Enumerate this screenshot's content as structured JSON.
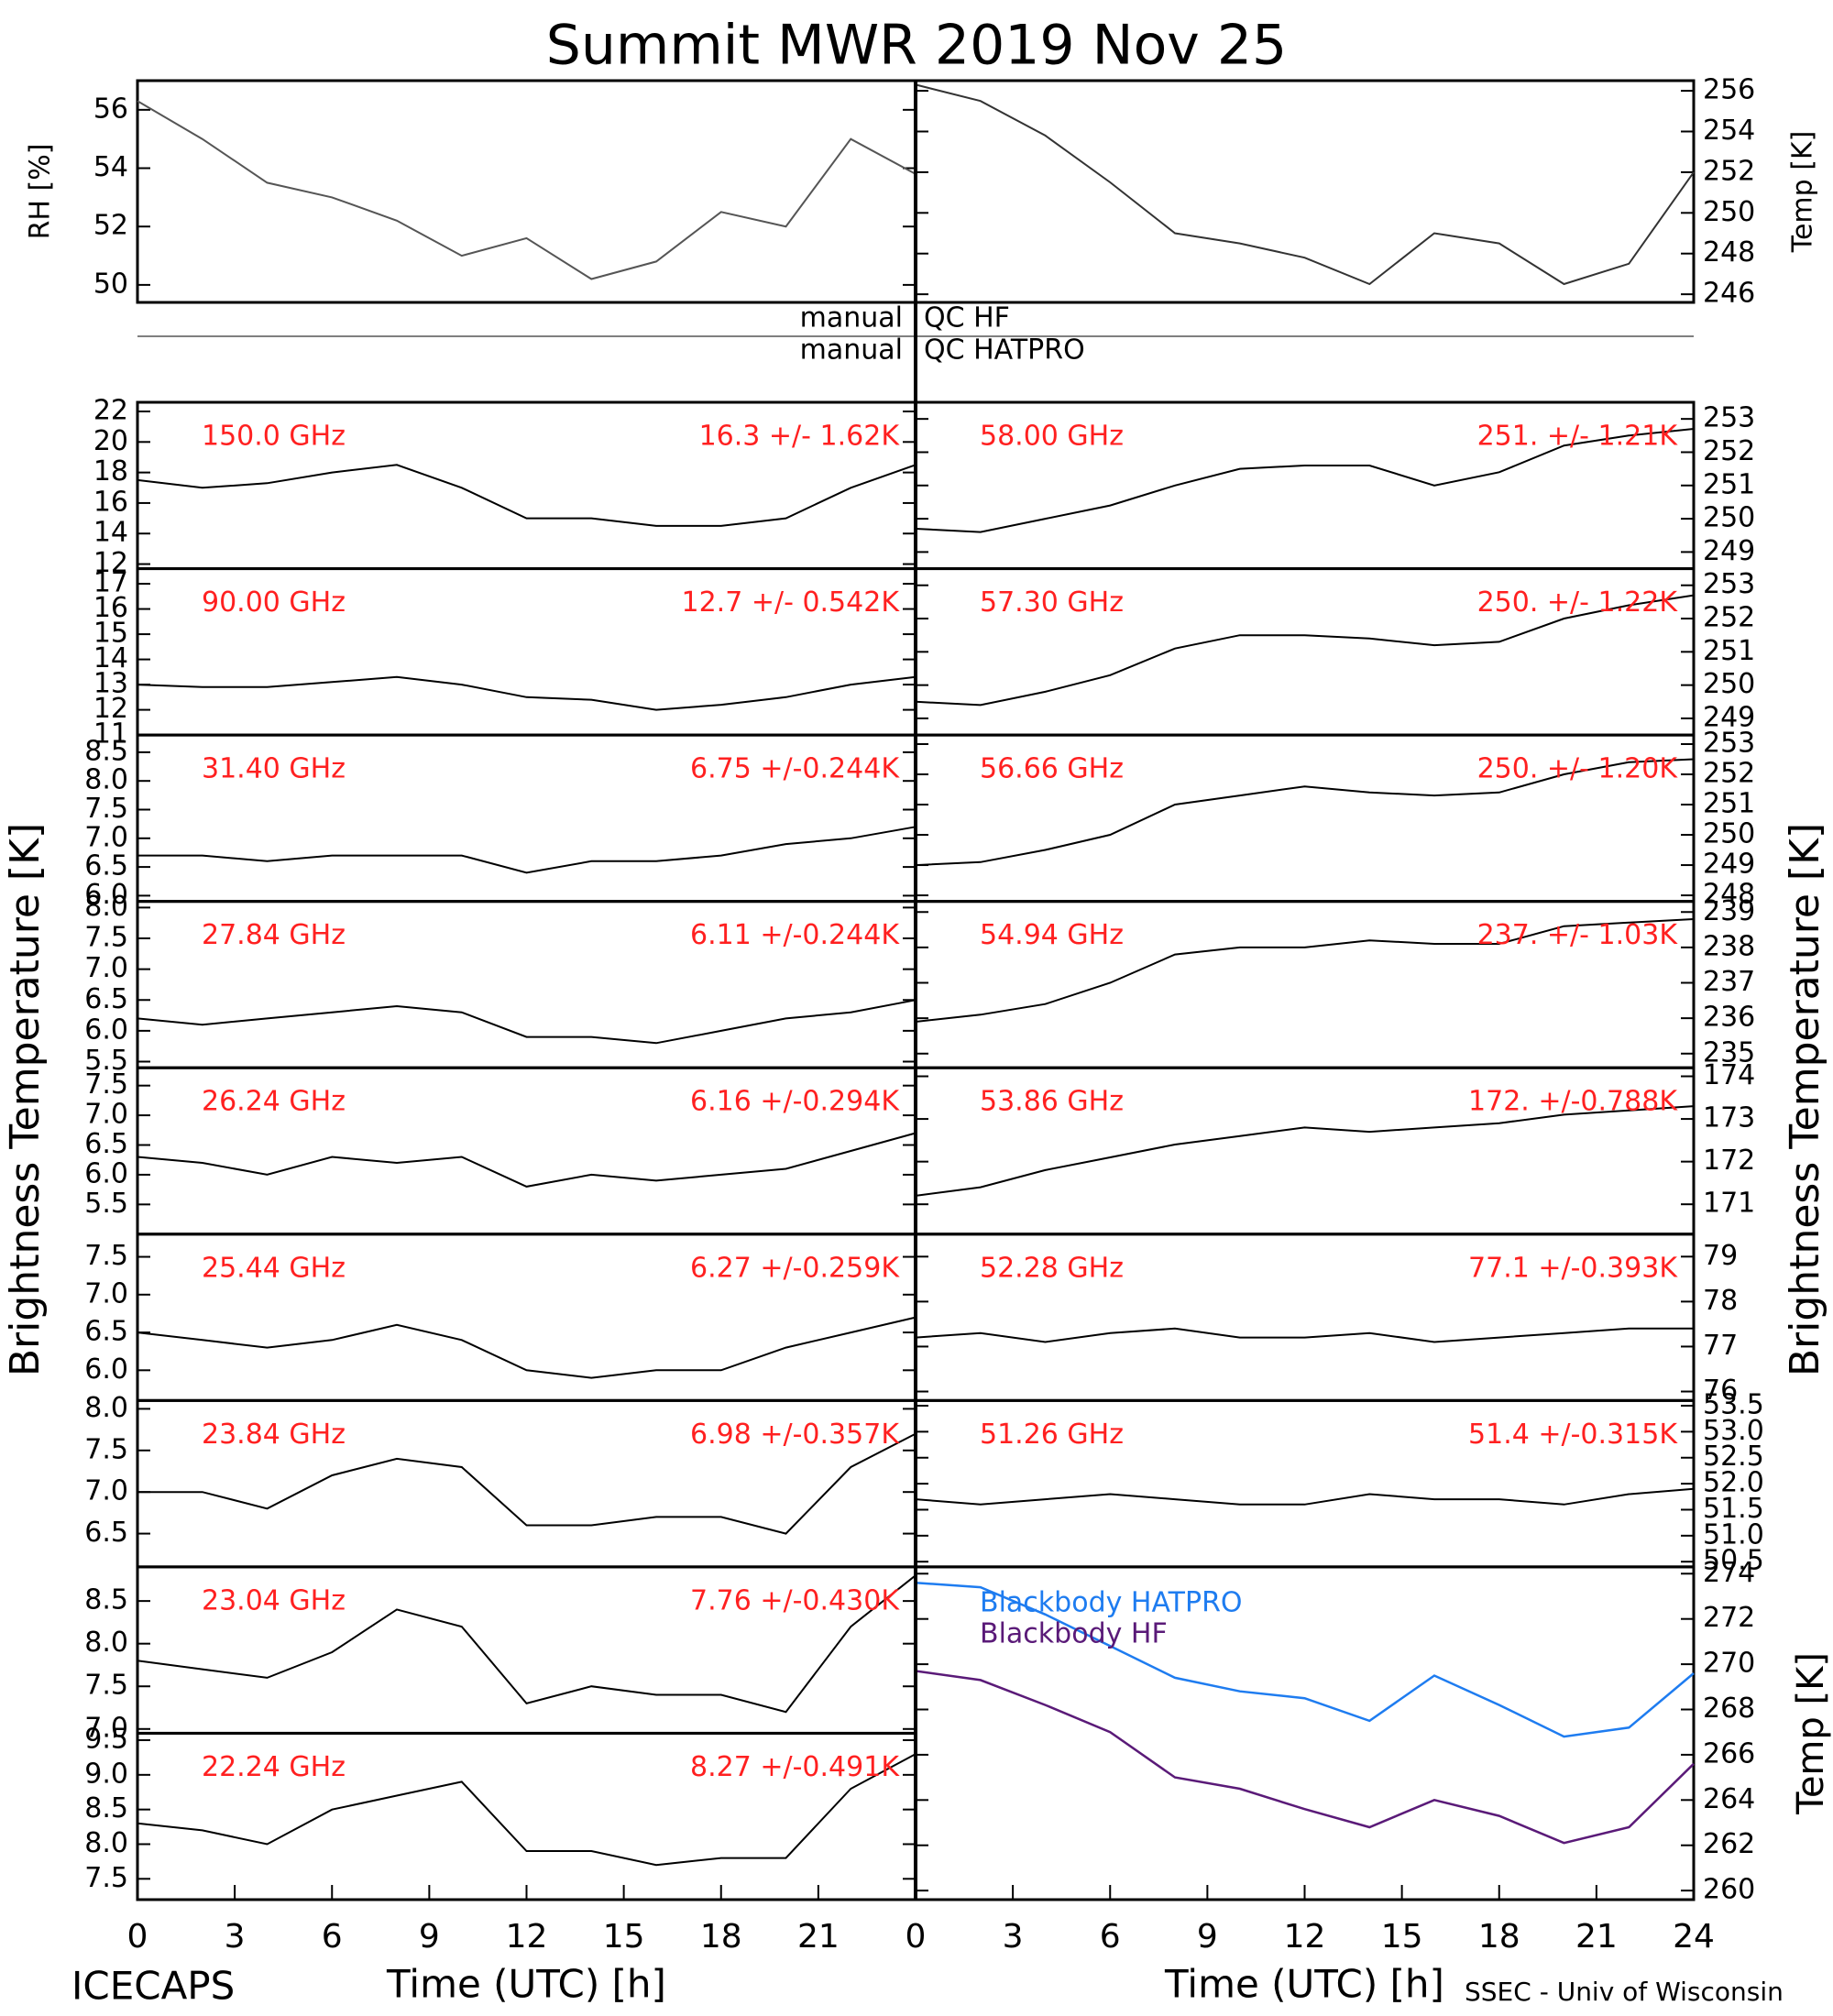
{
  "title": "Summit MWR 2019 Nov 25",
  "ylabel": "Brightness Temperature [K]",
  "qc": [
    {
      "left": "manual",
      "right": "QC HF"
    },
    {
      "left": "manual",
      "right": "QC HATPRO"
    }
  ],
  "footer": {
    "left": "ICECAPS",
    "right": "SSEC - Univ of Wisconsin"
  },
  "chart_data": [
    {
      "type": "line",
      "ylabel": "RH [%]",
      "yaxis": "left",
      "xlim": [
        0,
        24
      ],
      "ylim": [
        49.4,
        57
      ],
      "yticks": [
        50,
        52,
        54,
        56
      ],
      "x": [
        0,
        2,
        4,
        6,
        8,
        10,
        12,
        14,
        16,
        18,
        20,
        22,
        24
      ],
      "series": [
        {
          "color": "#555555",
          "values": [
            56.3,
            55.0,
            53.5,
            53.0,
            52.2,
            51.0,
            51.6,
            50.2,
            50.8,
            52.5,
            52.0,
            55.0,
            53.8
          ]
        }
      ]
    },
    {
      "type": "line",
      "ylabel": "Temp [K]",
      "yaxis": "right",
      "xlim": [
        0,
        24
      ],
      "ylim": [
        245.6,
        256.5
      ],
      "yticks": [
        246,
        248,
        250,
        252,
        254,
        256
      ],
      "x": [
        0,
        2,
        4,
        6,
        8,
        10,
        12,
        14,
        16,
        18,
        20,
        22,
        24
      ],
      "series": [
        {
          "color": "#333333",
          "values": [
            256.3,
            255.5,
            253.8,
            251.5,
            249.0,
            248.5,
            247.8,
            246.5,
            249.0,
            248.5,
            246.5,
            247.5,
            252.0
          ]
        }
      ]
    },
    {
      "type": "line",
      "label": "150.0 GHz",
      "stats": "16.3 +/-  1.62K",
      "text_color": "#ff2020",
      "yaxis": "left",
      "xlim": [
        0,
        24
      ],
      "ylim": [
        11.7,
        22.6
      ],
      "yticks": [
        12,
        14,
        16,
        18,
        20,
        22
      ],
      "x": [
        0,
        2,
        4,
        6,
        8,
        10,
        12,
        14,
        16,
        18,
        20,
        22,
        24
      ],
      "series": [
        {
          "color": "#000000",
          "values": [
            17.5,
            17.0,
            17.3,
            18.0,
            18.5,
            17.0,
            15.0,
            15.0,
            14.5,
            14.5,
            15.0,
            17.0,
            18.5
          ]
        }
      ]
    },
    {
      "type": "line",
      "label": "90.00 GHz",
      "stats": "12.7 +/- 0.542K",
      "text_color": "#ff2020",
      "yaxis": "left",
      "xlim": [
        0,
        24
      ],
      "ylim": [
        11,
        17.6
      ],
      "yticks": [
        11,
        12,
        13,
        14,
        15,
        16,
        17
      ],
      "x": [
        0,
        2,
        4,
        6,
        8,
        10,
        12,
        14,
        16,
        18,
        20,
        22,
        24
      ],
      "series": [
        {
          "color": "#000000",
          "values": [
            13.0,
            12.9,
            12.9,
            13.1,
            13.3,
            13.0,
            12.5,
            12.4,
            12.0,
            12.2,
            12.5,
            13.0,
            13.3
          ]
        }
      ]
    },
    {
      "type": "line",
      "label": "31.40 GHz",
      "stats": "6.75 +/-0.244K",
      "text_color": "#ff2020",
      "yaxis": "left",
      "xlim": [
        0,
        24
      ],
      "ylim": [
        5.9,
        8.8
      ],
      "yticks": [
        {
          "value": 6,
          "label": "6.0"
        },
        6.5,
        {
          "value": 7,
          "label": "7.0"
        },
        7.5,
        {
          "value": 8,
          "label": "8.0"
        },
        8.5
      ],
      "x": [
        0,
        2,
        4,
        6,
        8,
        10,
        12,
        14,
        16,
        18,
        20,
        22,
        24
      ],
      "series": [
        {
          "color": "#000000",
          "values": [
            6.7,
            6.7,
            6.6,
            6.7,
            6.7,
            6.7,
            6.4,
            6.6,
            6.6,
            6.7,
            6.9,
            7.0,
            7.2
          ]
        }
      ]
    },
    {
      "type": "line",
      "label": "27.84 GHz",
      "stats": "6.11 +/-0.244K",
      "text_color": "#ff2020",
      "yaxis": "left",
      "xlim": [
        0,
        24
      ],
      "ylim": [
        5.4,
        8.1
      ],
      "yticks": [
        5.5,
        {
          "value": 6,
          "label": "6.0"
        },
        6.5,
        {
          "value": 7,
          "label": "7.0"
        },
        7.5,
        {
          "value": 8,
          "label": "8.0"
        }
      ],
      "x": [
        0,
        2,
        4,
        6,
        8,
        10,
        12,
        14,
        16,
        18,
        20,
        22,
        24
      ],
      "series": [
        {
          "color": "#000000",
          "values": [
            6.2,
            6.1,
            6.2,
            6.3,
            6.4,
            6.3,
            5.9,
            5.9,
            5.8,
            6.0,
            6.2,
            6.3,
            6.5
          ]
        }
      ]
    },
    {
      "type": "line",
      "label": "26.24 GHz",
      "stats": "6.16 +/-0.294K",
      "text_color": "#ff2020",
      "yaxis": "left",
      "xlim": [
        0,
        24
      ],
      "ylim": [
        5.0,
        7.8
      ],
      "yticks": [
        5.5,
        {
          "value": 6,
          "label": "6.0"
        },
        6.5,
        {
          "value": 7,
          "label": "7.0"
        },
        7.5
      ],
      "x": [
        0,
        2,
        4,
        6,
        8,
        10,
        12,
        14,
        16,
        18,
        20,
        22,
        24
      ],
      "series": [
        {
          "color": "#000000",
          "values": [
            6.3,
            6.2,
            6.0,
            6.3,
            6.2,
            6.3,
            5.8,
            6.0,
            5.9,
            6.0,
            6.1,
            6.4,
            6.7
          ]
        }
      ]
    },
    {
      "type": "line",
      "label": "25.44 GHz",
      "stats": "6.27 +/-0.259K",
      "text_color": "#ff2020",
      "yaxis": "left",
      "xlim": [
        0,
        24
      ],
      "ylim": [
        5.6,
        7.8
      ],
      "yticks": [
        {
          "value": 6,
          "label": "6.0"
        },
        6.5,
        {
          "value": 7,
          "label": "7.0"
        },
        7.5
      ],
      "x": [
        0,
        2,
        4,
        6,
        8,
        10,
        12,
        14,
        16,
        18,
        20,
        22,
        24
      ],
      "series": [
        {
          "color": "#000000",
          "values": [
            6.5,
            6.4,
            6.3,
            6.4,
            6.6,
            6.4,
            6.0,
            5.9,
            6.0,
            6.0,
            6.3,
            6.5,
            6.7
          ]
        }
      ]
    },
    {
      "type": "line",
      "label": "23.84 GHz",
      "stats": "6.98 +/-0.357K",
      "text_color": "#ff2020",
      "yaxis": "left",
      "xlim": [
        0,
        24
      ],
      "ylim": [
        6.1,
        8.1
      ],
      "yticks": [
        6.5,
        {
          "value": 7,
          "label": "7.0"
        },
        7.5,
        {
          "value": 8,
          "label": "8.0"
        }
      ],
      "x": [
        0,
        2,
        4,
        6,
        8,
        10,
        12,
        14,
        16,
        18,
        20,
        22,
        24
      ],
      "series": [
        {
          "color": "#000000",
          "values": [
            7.0,
            7.0,
            6.8,
            7.2,
            7.4,
            7.3,
            6.6,
            6.6,
            6.7,
            6.7,
            6.5,
            7.3,
            7.7
          ]
        }
      ]
    },
    {
      "type": "line",
      "label": "23.04 GHz",
      "stats": "7.76 +/-0.430K",
      "text_color": "#ff2020",
      "yaxis": "left",
      "xlim": [
        0,
        24
      ],
      "ylim": [
        6.95,
        8.9
      ],
      "yticks": [
        {
          "value": 7,
          "label": "7.0"
        },
        7.5,
        {
          "value": 8,
          "label": "8.0"
        },
        8.5
      ],
      "x": [
        0,
        2,
        4,
        6,
        8,
        10,
        12,
        14,
        16,
        18,
        20,
        22,
        24
      ],
      "series": [
        {
          "color": "#000000",
          "values": [
            7.8,
            7.7,
            7.6,
            7.9,
            8.4,
            8.2,
            7.3,
            7.5,
            7.4,
            7.4,
            7.2,
            8.2,
            8.8
          ]
        }
      ]
    },
    {
      "type": "line",
      "label": "22.24 GHz",
      "stats": "8.27 +/-0.491K",
      "text_color": "#ff2020",
      "yaxis": "left",
      "xlim": [
        0,
        24
      ],
      "ylim": [
        7.2,
        9.6
      ],
      "yticks": [
        7.5,
        {
          "value": 8,
          "label": "8.0"
        },
        8.5,
        {
          "value": 9,
          "label": "9.0"
        },
        9.5
      ],
      "xticks": [
        0,
        3,
        6,
        9,
        12,
        15,
        18,
        21
      ],
      "xlabel": "Time (UTC) [h]",
      "x": [
        0,
        2,
        4,
        6,
        8,
        10,
        12,
        14,
        16,
        18,
        20,
        22,
        24
      ],
      "series": [
        {
          "color": "#000000",
          "values": [
            8.3,
            8.2,
            8.0,
            8.5,
            8.7,
            8.9,
            7.9,
            7.9,
            7.7,
            7.8,
            7.8,
            8.8,
            9.3
          ]
        }
      ]
    },
    {
      "type": "line",
      "label": "58.00 GHz",
      "stats": "251. +/- 1.21K",
      "text_color": "#ff2020",
      "yaxis": "right",
      "xlim": [
        0,
        24
      ],
      "ylim": [
        248.5,
        253.5
      ],
      "yticks": [
        249,
        250,
        251,
        252,
        253
      ],
      "x": [
        0,
        2,
        4,
        6,
        8,
        10,
        12,
        14,
        16,
        18,
        20,
        22,
        24
      ],
      "series": [
        {
          "color": "#000000",
          "values": [
            249.7,
            249.6,
            250.0,
            250.4,
            251.0,
            251.5,
            251.6,
            251.6,
            251.0,
            251.4,
            252.2,
            252.5,
            252.7
          ]
        }
      ]
    },
    {
      "type": "line",
      "label": "57.30 GHz",
      "stats": "250. +/- 1.22K",
      "text_color": "#ff2020",
      "yaxis": "right",
      "xlim": [
        0,
        24
      ],
      "ylim": [
        248.5,
        253.5
      ],
      "yticks": [
        249,
        250,
        251,
        252,
        253
      ],
      "x": [
        0,
        2,
        4,
        6,
        8,
        10,
        12,
        14,
        16,
        18,
        20,
        22,
        24
      ],
      "series": [
        {
          "color": "#000000",
          "values": [
            249.5,
            249.4,
            249.8,
            250.3,
            251.1,
            251.5,
            251.5,
            251.4,
            251.2,
            251.3,
            252.0,
            252.4,
            252.7
          ]
        }
      ]
    },
    {
      "type": "line",
      "label": "56.66 GHz",
      "stats": "250. +/- 1.20K",
      "text_color": "#ff2020",
      "yaxis": "right",
      "xlim": [
        0,
        24
      ],
      "ylim": [
        247.8,
        253.3
      ],
      "yticks": [
        248,
        249,
        250,
        251,
        252,
        253
      ],
      "x": [
        0,
        2,
        4,
        6,
        8,
        10,
        12,
        14,
        16,
        18,
        20,
        22,
        24
      ],
      "series": [
        {
          "color": "#000000",
          "values": [
            249.0,
            249.1,
            249.5,
            250.0,
            251.0,
            251.3,
            251.6,
            251.4,
            251.3,
            251.4,
            252.0,
            252.4,
            252.5
          ]
        }
      ]
    },
    {
      "type": "line",
      "label": "54.94 GHz",
      "stats": "237. +/- 1.03K",
      "text_color": "#ff2020",
      "yaxis": "right",
      "xlim": [
        0,
        24
      ],
      "ylim": [
        234.6,
        239.3
      ],
      "yticks": [
        235,
        236,
        237,
        238,
        239
      ],
      "x": [
        0,
        2,
        4,
        6,
        8,
        10,
        12,
        14,
        16,
        18,
        20,
        22,
        24
      ],
      "series": [
        {
          "color": "#000000",
          "values": [
            235.9,
            236.1,
            236.4,
            237.0,
            237.8,
            238.0,
            238.0,
            238.2,
            238.1,
            238.1,
            238.6,
            238.7,
            238.8
          ]
        }
      ]
    },
    {
      "type": "line",
      "label": "53.86 GHz",
      "stats": "172. +/-0.788K",
      "text_color": "#ff2020",
      "yaxis": "right",
      "xlim": [
        0,
        24
      ],
      "ylim": [
        170.3,
        174.2
      ],
      "yticks": [
        171,
        172,
        173,
        174
      ],
      "x": [
        0,
        2,
        4,
        6,
        8,
        10,
        12,
        14,
        16,
        18,
        20,
        22,
        24
      ],
      "series": [
        {
          "color": "#000000",
          "values": [
            171.2,
            171.4,
            171.8,
            172.1,
            172.4,
            172.6,
            172.8,
            172.7,
            172.8,
            172.9,
            173.1,
            173.2,
            173.3
          ]
        }
      ]
    },
    {
      "type": "line",
      "label": "52.28 GHz",
      "stats": "77.1 +/-0.393K",
      "text_color": "#ff2020",
      "yaxis": "right",
      "xlim": [
        0,
        24
      ],
      "ylim": [
        75.8,
        79.5
      ],
      "yticks": [
        76,
        77,
        78,
        79
      ],
      "x": [
        0,
        2,
        4,
        6,
        8,
        10,
        12,
        14,
        16,
        18,
        20,
        22,
        24
      ],
      "series": [
        {
          "color": "#000000",
          "values": [
            77.2,
            77.3,
            77.1,
            77.3,
            77.4,
            77.2,
            77.2,
            77.3,
            77.1,
            77.2,
            77.3,
            77.4,
            77.4
          ]
        }
      ]
    },
    {
      "type": "line",
      "label": "51.26 GHz",
      "stats": "51.4 +/-0.315K",
      "text_color": "#ff2020",
      "yaxis": "right",
      "xlim": [
        0,
        24
      ],
      "ylim": [
        50.4,
        53.6
      ],
      "yticks": [
        50.5,
        {
          "value": 51,
          "label": "51.0"
        },
        51.5,
        {
          "value": 52,
          "label": "52.0"
        },
        52.5,
        {
          "value": 53,
          "label": "53.0"
        },
        53.5
      ],
      "x": [
        0,
        2,
        4,
        6,
        8,
        10,
        12,
        14,
        16,
        18,
        20,
        22,
        24
      ],
      "series": [
        {
          "color": "#000000",
          "values": [
            51.7,
            51.6,
            51.7,
            51.8,
            51.7,
            51.6,
            51.6,
            51.8,
            51.7,
            51.7,
            51.6,
            51.8,
            51.9
          ]
        }
      ]
    },
    {
      "type": "line",
      "ylabel": "Temp [K]",
      "yaxis": "right",
      "xlim": [
        0,
        24
      ],
      "ylim": [
        259.6,
        274.3
      ],
      "yticks": [
        260,
        262,
        264,
        266,
        268,
        270,
        272,
        274
      ],
      "xticks": [
        0,
        3,
        6,
        9,
        12,
        15,
        18,
        21,
        24
      ],
      "xlabel": "Time (UTC) [h]",
      "x": [
        0,
        2,
        4,
        6,
        8,
        10,
        12,
        14,
        16,
        18,
        20,
        22,
        24
      ],
      "series": [
        {
          "name": "Blackbody HATPRO",
          "color": "#1e7cf0",
          "values": [
            273.6,
            273.4,
            272.2,
            270.8,
            269.4,
            268.8,
            268.5,
            267.5,
            269.5,
            268.2,
            266.8,
            267.2,
            269.6
          ]
        },
        {
          "name": "Blackbody HF",
          "color": "#5a1a78",
          "values": [
            269.7,
            269.3,
            268.2,
            267.0,
            265.0,
            264.5,
            263.6,
            262.8,
            264.0,
            263.3,
            262.1,
            262.8,
            265.6
          ]
        }
      ]
    }
  ]
}
